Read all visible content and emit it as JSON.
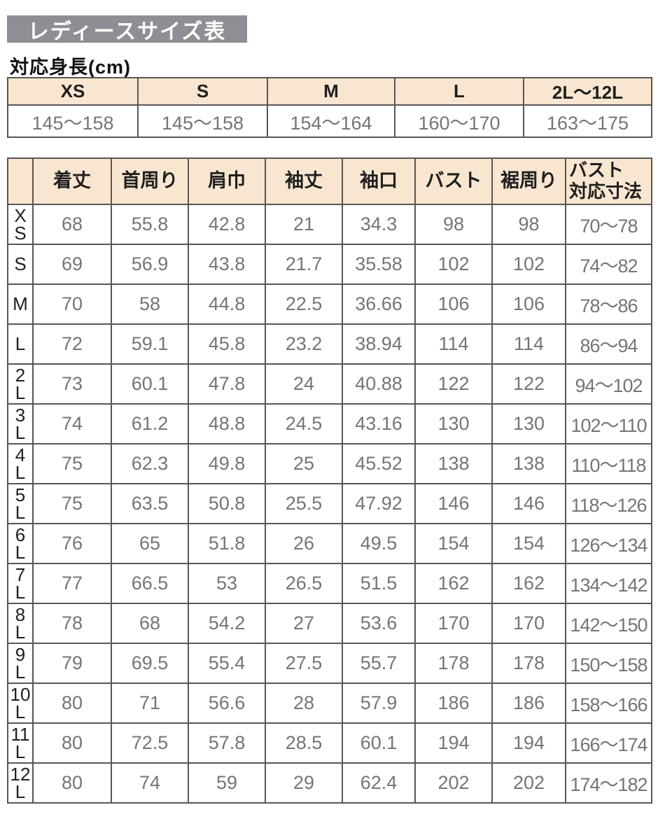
{
  "page": {
    "title": "レディースサイズ表",
    "subtitle": "対応身長(cm)"
  },
  "colors": {
    "title_bg": "#918d94",
    "header_bg": "#f8e6d0",
    "border": "#5a5652",
    "value_text": "#757575",
    "label_text": "#1f1f1f",
    "page_bg": "#ffffff"
  },
  "height_table": {
    "columns": [
      "XS",
      "S",
      "M",
      "L",
      "2L〜12L"
    ],
    "values": [
      "145〜158",
      "145〜158",
      "154〜164",
      "160〜170",
      "163〜175"
    ]
  },
  "size_table": {
    "columns": [
      "",
      "着丈",
      "首周り",
      "肩巾",
      "袖丈",
      "袖口",
      "バスト",
      "裾周り",
      "バスト\n対応寸法"
    ],
    "rows": [
      {
        "size": "XS",
        "label": "X\nS",
        "values": [
          "68",
          "55.8",
          "42.8",
          "21",
          "34.3",
          "98",
          "98",
          "70〜78"
        ]
      },
      {
        "size": "S",
        "label": "S",
        "values": [
          "69",
          "56.9",
          "43.8",
          "21.7",
          "35.58",
          "102",
          "102",
          "74〜82"
        ]
      },
      {
        "size": "M",
        "label": "M",
        "values": [
          "70",
          "58",
          "44.8",
          "22.5",
          "36.66",
          "106",
          "106",
          "78〜86"
        ]
      },
      {
        "size": "L",
        "label": "L",
        "values": [
          "72",
          "59.1",
          "45.8",
          "23.2",
          "38.94",
          "114",
          "114",
          "86〜94"
        ]
      },
      {
        "size": "2L",
        "label": "2\nL",
        "values": [
          "73",
          "60.1",
          "47.8",
          "24",
          "40.88",
          "122",
          "122",
          "94〜102"
        ]
      },
      {
        "size": "3L",
        "label": "3\nL",
        "values": [
          "74",
          "61.2",
          "48.8",
          "24.5",
          "43.16",
          "130",
          "130",
          "102〜110"
        ]
      },
      {
        "size": "4L",
        "label": "4\nL",
        "values": [
          "75",
          "62.3",
          "49.8",
          "25",
          "45.52",
          "138",
          "138",
          "110〜118"
        ]
      },
      {
        "size": "5L",
        "label": "5\nL",
        "values": [
          "75",
          "63.5",
          "50.8",
          "25.5",
          "47.92",
          "146",
          "146",
          "118〜126"
        ]
      },
      {
        "size": "6L",
        "label": "6\nL",
        "values": [
          "76",
          "65",
          "51.8",
          "26",
          "49.5",
          "154",
          "154",
          "126〜134"
        ]
      },
      {
        "size": "7L",
        "label": "7\nL",
        "values": [
          "77",
          "66.5",
          "53",
          "26.5",
          "51.5",
          "162",
          "162",
          "134〜142"
        ]
      },
      {
        "size": "8L",
        "label": "8\nL",
        "values": [
          "78",
          "68",
          "54.2",
          "27",
          "53.6",
          "170",
          "170",
          "142〜150"
        ]
      },
      {
        "size": "9L",
        "label": "9\nL",
        "values": [
          "79",
          "69.5",
          "55.4",
          "27.5",
          "55.7",
          "178",
          "178",
          "150〜158"
        ]
      },
      {
        "size": "10L",
        "label": "10\nL",
        "values": [
          "80",
          "71",
          "56.6",
          "28",
          "57.9",
          "186",
          "186",
          "158〜166"
        ]
      },
      {
        "size": "11L",
        "label": "11\nL",
        "values": [
          "80",
          "72.5",
          "57.8",
          "28.5",
          "60.1",
          "194",
          "194",
          "166〜174"
        ]
      },
      {
        "size": "12L",
        "label": "12\nL",
        "values": [
          "80",
          "74",
          "59",
          "29",
          "62.4",
          "202",
          "202",
          "174〜182"
        ]
      }
    ]
  }
}
